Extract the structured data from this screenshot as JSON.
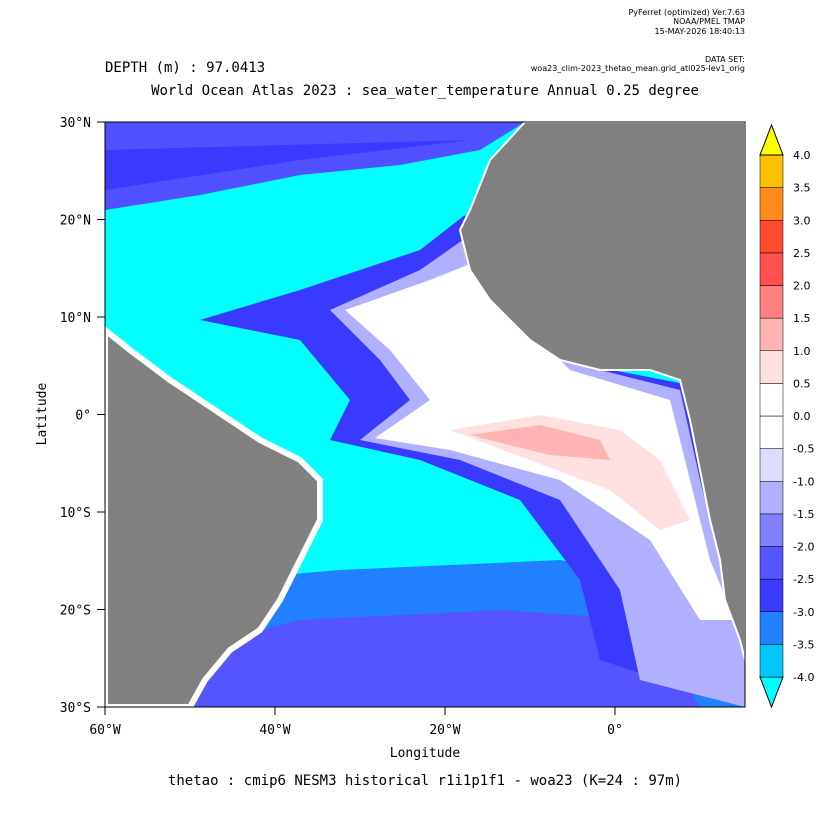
{
  "header": {
    "software": "PyFerret (optimized) Ver.7.63",
    "org": "NOAA/PMEL TMAP",
    "timestamp": "15-MAY-2026 18:40:13",
    "dataset_label": "DATA SET:",
    "dataset": "woa23_clim-2023_thetao_mean.grid_atl025-lev1_orig"
  },
  "depth_label": "DEPTH (m) : 97.0413",
  "title": "World Ocean Atlas 2023 : sea_water_temperature Annual  0.25 degree",
  "footer": "thetao : cmip6 NESM3 historical r1i1p1f1 - woa23  (K=24 : 97m)",
  "map": {
    "xlabel": "Longitude",
    "ylabel": "Latitude",
    "xlim": [
      -60,
      15.3
    ],
    "ylim": [
      -30,
      30
    ],
    "xticks": [
      {
        "value": -60,
        "label": "60°W"
      },
      {
        "value": -40,
        "label": "40°W"
      },
      {
        "value": -20,
        "label": "20°W"
      },
      {
        "value": 0,
        "label": "0°"
      }
    ],
    "yticks": [
      {
        "value": 30,
        "label": "30°N"
      },
      {
        "value": 20,
        "label": "20°N"
      },
      {
        "value": 10,
        "label": "10°N"
      },
      {
        "value": 0,
        "label": "0°"
      },
      {
        "value": -10,
        "label": "10°S"
      },
      {
        "value": -20,
        "label": "20°S"
      },
      {
        "value": -30,
        "label": "30°S"
      }
    ],
    "colorbar": {
      "levels": [
        {
          "value": -4,
          "label": "-4.0"
        },
        {
          "value": -3.5,
          "label": "-3.5"
        },
        {
          "value": -3,
          "label": "-3.0"
        },
        {
          "value": -2.5,
          "label": "-2.5"
        },
        {
          "value": -2,
          "label": "-2.0"
        },
        {
          "value": -1.5,
          "label": "-1.5"
        },
        {
          "value": -1,
          "label": "-1.0"
        },
        {
          "value": -0.5,
          "label": "-0.5"
        },
        {
          "value": 0,
          "label": "0.0"
        },
        {
          "value": 0.5,
          "label": "0.5"
        },
        {
          "value": 1,
          "label": "1.0"
        },
        {
          "value": 1.5,
          "label": "1.5"
        },
        {
          "value": 2,
          "label": "2.0"
        },
        {
          "value": 2.5,
          "label": "2.5"
        },
        {
          "value": 3,
          "label": "3.0"
        },
        {
          "value": 3.5,
          "label": "3.5"
        },
        {
          "value": 4,
          "label": "4.0"
        }
      ],
      "colors": [
        "#00ffff",
        "#00c8ff",
        "#2080ff",
        "#3a3aff",
        "#5555ff",
        "#8080ff",
        "#b0b0ff",
        "#dcdcff",
        "#ffffff",
        "#ffffff",
        "#ffe0e0",
        "#ffb3b3",
        "#ff8080",
        "#ff5050",
        "#ff4a30",
        "#ff8c1a",
        "#ffc000",
        "#ffff00"
      ]
    }
  }
}
